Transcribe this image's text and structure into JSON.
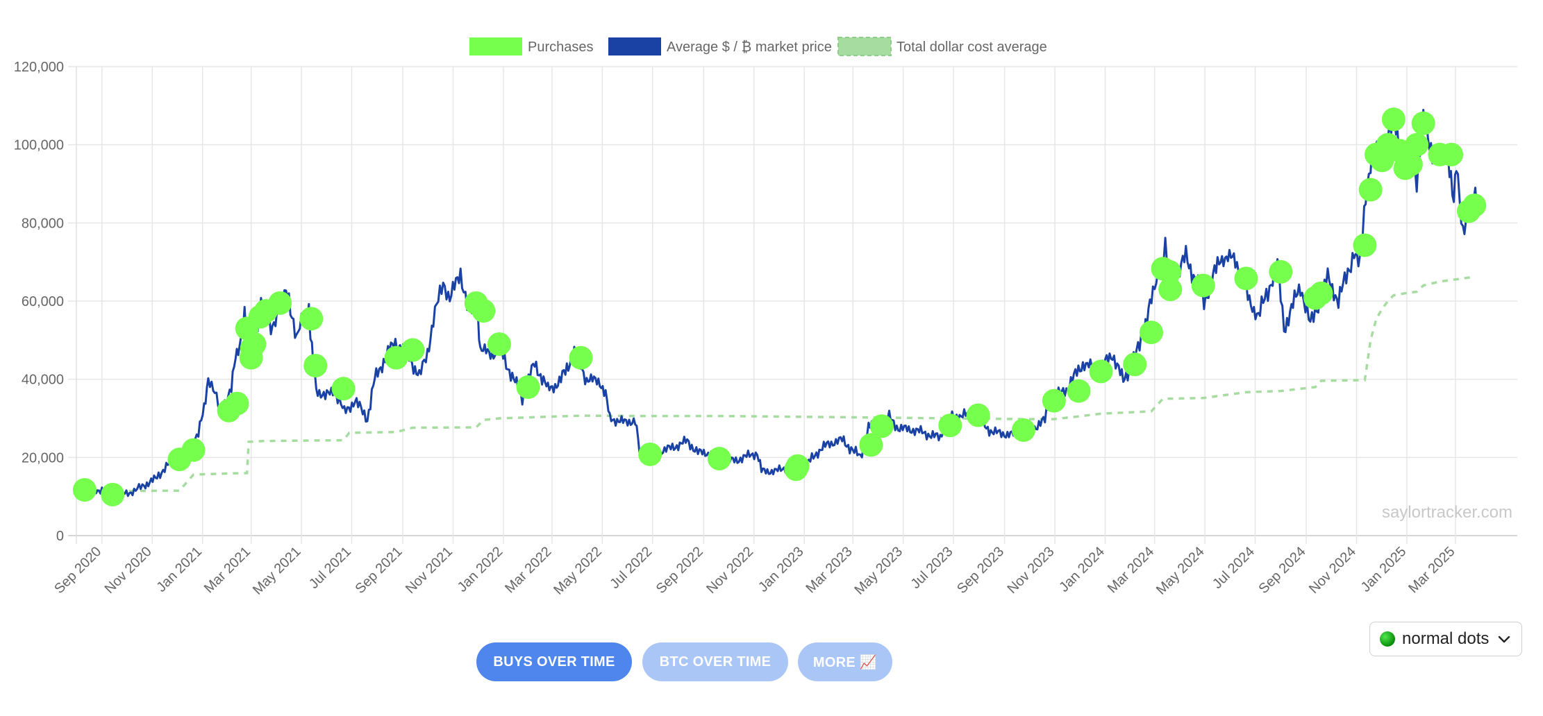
{
  "chart_data": {
    "type": "line",
    "title": "",
    "xlabel": "",
    "ylabel": "",
    "ylim": [
      0,
      120000
    ],
    "yticks": [
      0,
      20000,
      40000,
      60000,
      80000,
      100000,
      120000
    ],
    "ytick_labels": [
      "0",
      "20,000",
      "40,000",
      "60,000",
      "80,000",
      "100,000",
      "120,000"
    ],
    "xlim": [
      "2020-08-01",
      "2025-05-15"
    ],
    "xticks": [
      "2020-09-01",
      "2020-11-01",
      "2021-01-01",
      "2021-03-01",
      "2021-05-01",
      "2021-07-01",
      "2021-09-01",
      "2021-11-01",
      "2022-01-01",
      "2022-03-01",
      "2022-05-01",
      "2022-07-01",
      "2022-09-01",
      "2022-11-01",
      "2023-01-01",
      "2023-03-01",
      "2023-05-01",
      "2023-07-01",
      "2023-09-01",
      "2023-11-01",
      "2024-01-01",
      "2024-03-01",
      "2024-05-01",
      "2024-07-01",
      "2024-09-01",
      "2024-11-01",
      "2025-01-01",
      "2025-03-01"
    ],
    "xtick_labels": [
      "Sep 2020",
      "Nov 2020",
      "Jan 2021",
      "Mar 2021",
      "May 2021",
      "Jul 2021",
      "Sep 2021",
      "Nov 2021",
      "Jan 2022",
      "Mar 2022",
      "May 2022",
      "Jul 2022",
      "Sep 2022",
      "Nov 2022",
      "Jan 2023",
      "Mar 2023",
      "May 2023",
      "Jul 2023",
      "Sep 2023",
      "Nov 2023",
      "Jan 2024",
      "Mar 2024",
      "May 2024",
      "Jul 2024",
      "Sep 2024",
      "Nov 2024",
      "Jan 2025",
      "Mar 2025"
    ],
    "grid": true,
    "legend_position": "top-center",
    "series": [
      {
        "name": "Purchases",
        "kind": "scatter",
        "color": "#76ff4d",
        "points": [
          [
            "2020-08-11",
            11700
          ],
          [
            "2020-09-14",
            10500
          ],
          [
            "2020-12-04",
            19500
          ],
          [
            "2020-12-21",
            21900
          ],
          [
            "2021-02-02",
            32000
          ],
          [
            "2021-02-12",
            33800
          ],
          [
            "2021-02-24",
            53000
          ],
          [
            "2021-03-01",
            45500
          ],
          [
            "2021-03-02",
            48000
          ],
          [
            "2021-03-05",
            49000
          ],
          [
            "2021-03-12",
            56000
          ],
          [
            "2021-03-19",
            57500
          ],
          [
            "2021-04-05",
            59500
          ],
          [
            "2021-05-13",
            55500
          ],
          [
            "2021-05-18",
            43500
          ],
          [
            "2021-06-21",
            37600
          ],
          [
            "2021-08-24",
            45500
          ],
          [
            "2021-09-13",
            47500
          ],
          [
            "2021-11-29",
            59500
          ],
          [
            "2021-12-08",
            57500
          ],
          [
            "2021-12-27",
            49000
          ],
          [
            "2022-01-31",
            38000
          ],
          [
            "2022-04-05",
            45500
          ],
          [
            "2022-06-28",
            20800
          ],
          [
            "2022-09-20",
            19700
          ],
          [
            "2022-12-22",
            17000
          ],
          [
            "2022-12-24",
            17800
          ],
          [
            "2023-03-23",
            23200
          ],
          [
            "2023-04-05",
            28000
          ],
          [
            "2023-06-27",
            28200
          ],
          [
            "2023-07-31",
            30800
          ],
          [
            "2023-09-24",
            27000
          ],
          [
            "2023-10-31",
            34500
          ],
          [
            "2023-11-30",
            37000
          ],
          [
            "2023-12-27",
            42000
          ],
          [
            "2024-02-06",
            43800
          ],
          [
            "2024-02-26",
            52000
          ],
          [
            "2024-03-11",
            68300
          ],
          [
            "2024-03-19",
            67500
          ],
          [
            "2024-03-20",
            63000
          ],
          [
            "2024-04-29",
            64000
          ],
          [
            "2024-06-20",
            65800
          ],
          [
            "2024-08-01",
            67500
          ],
          [
            "2024-09-12",
            60800
          ],
          [
            "2024-09-19",
            62000
          ],
          [
            "2024-11-11",
            74300
          ],
          [
            "2024-11-18",
            88500
          ],
          [
            "2024-11-25",
            97500
          ],
          [
            "2024-12-02",
            96000
          ],
          [
            "2024-12-09",
            100000
          ],
          [
            "2024-12-16",
            106500
          ],
          [
            "2024-12-23",
            98500
          ],
          [
            "2024-12-30",
            94000
          ],
          [
            "2025-01-06",
            95000
          ],
          [
            "2025-01-13",
            100000
          ],
          [
            "2025-01-21",
            105500
          ],
          [
            "2025-02-10",
            97500
          ],
          [
            "2025-02-24",
            97500
          ],
          [
            "2025-03-17",
            83000
          ],
          [
            "2025-03-24",
            84500
          ]
        ]
      },
      {
        "name": "Average $ / ₿ market price",
        "kind": "line",
        "color": "#1a42a5",
        "points": [
          [
            "2020-08-05",
            11500
          ],
          [
            "2020-09-01",
            11700
          ],
          [
            "2020-09-05",
            10300
          ],
          [
            "2020-09-25",
            10700
          ],
          [
            "2020-10-10",
            11300
          ],
          [
            "2020-10-22",
            12900
          ],
          [
            "2020-11-05",
            14500
          ],
          [
            "2020-11-18",
            17800
          ],
          [
            "2020-11-25",
            18700
          ],
          [
            "2020-12-05",
            19200
          ],
          [
            "2020-12-17",
            22800
          ],
          [
            "2020-12-27",
            26500
          ],
          [
            "2021-01-03",
            32000
          ],
          [
            "2021-01-08",
            40500
          ],
          [
            "2021-01-14",
            38000
          ],
          [
            "2021-01-22",
            32000
          ],
          [
            "2021-01-28",
            34000
          ],
          [
            "2021-02-05",
            38000
          ],
          [
            "2021-02-10",
            45000
          ],
          [
            "2021-02-15",
            48500
          ],
          [
            "2021-02-21",
            57500
          ],
          [
            "2021-02-26",
            46500
          ],
          [
            "2021-03-05",
            49000
          ],
          [
            "2021-03-13",
            60000
          ],
          [
            "2021-03-25",
            53000
          ],
          [
            "2021-04-05",
            58500
          ],
          [
            "2021-04-14",
            63500
          ],
          [
            "2021-04-25",
            49500
          ],
          [
            "2021-05-03",
            57000
          ],
          [
            "2021-05-10",
            58000
          ],
          [
            "2021-05-12",
            50000
          ],
          [
            "2021-05-19",
            37500
          ],
          [
            "2021-05-30",
            35500
          ],
          [
            "2021-06-10",
            37500
          ],
          [
            "2021-06-22",
            31500
          ],
          [
            "2021-07-05",
            34500
          ],
          [
            "2021-07-20",
            30000
          ],
          [
            "2021-07-29",
            40000
          ],
          [
            "2021-08-14",
            47000
          ],
          [
            "2021-08-23",
            49500
          ],
          [
            "2021-09-07",
            46500
          ],
          [
            "2021-09-21",
            40500
          ],
          [
            "2021-10-01",
            47000
          ],
          [
            "2021-10-08",
            55000
          ],
          [
            "2021-10-20",
            65000
          ],
          [
            "2021-10-28",
            60500
          ],
          [
            "2021-11-10",
            67500
          ],
          [
            "2021-11-20",
            57000
          ],
          [
            "2021-12-01",
            57500
          ],
          [
            "2021-12-04",
            47500
          ],
          [
            "2021-12-20",
            46500
          ],
          [
            "2021-12-28",
            47500
          ],
          [
            "2022-01-10",
            41500
          ],
          [
            "2022-01-24",
            35500
          ],
          [
            "2022-02-08",
            44000
          ],
          [
            "2022-02-24",
            37500
          ],
          [
            "2022-03-10",
            39000
          ],
          [
            "2022-03-28",
            47000
          ],
          [
            "2022-04-12",
            40000
          ],
          [
            "2022-04-28",
            39500
          ],
          [
            "2022-05-05",
            36000
          ],
          [
            "2022-05-10",
            30000
          ],
          [
            "2022-05-28",
            29000
          ],
          [
            "2022-06-10",
            29500
          ],
          [
            "2022-06-15",
            21500
          ],
          [
            "2022-06-20",
            20300
          ],
          [
            "2022-07-08",
            21500
          ],
          [
            "2022-07-25",
            22500
          ],
          [
            "2022-08-12",
            24200
          ],
          [
            "2022-08-25",
            21300
          ],
          [
            "2022-09-10",
            21000
          ],
          [
            "2022-09-20",
            19000
          ],
          [
            "2022-10-10",
            19300
          ],
          [
            "2022-11-05",
            21200
          ],
          [
            "2022-11-10",
            16500
          ],
          [
            "2022-11-28",
            16500
          ],
          [
            "2022-12-13",
            17700
          ],
          [
            "2022-12-30",
            16500
          ],
          [
            "2023-01-14",
            20800
          ],
          [
            "2023-01-30",
            23500
          ],
          [
            "2023-02-16",
            24500
          ],
          [
            "2023-03-10",
            20000
          ],
          [
            "2023-03-20",
            28000
          ],
          [
            "2023-04-14",
            30300
          ],
          [
            "2023-04-25",
            27500
          ],
          [
            "2023-05-15",
            27000
          ],
          [
            "2023-06-15",
            25000
          ],
          [
            "2023-06-22",
            30000
          ],
          [
            "2023-07-14",
            31000
          ],
          [
            "2023-08-01",
            29500
          ],
          [
            "2023-08-17",
            26500
          ],
          [
            "2023-09-10",
            25800
          ],
          [
            "2023-09-28",
            26500
          ],
          [
            "2023-10-20",
            29500
          ],
          [
            "2023-10-25",
            34500
          ],
          [
            "2023-11-15",
            37500
          ],
          [
            "2023-12-05",
            44000
          ],
          [
            "2023-12-25",
            42500
          ],
          [
            "2024-01-10",
            46500
          ],
          [
            "2024-01-23",
            39500
          ],
          [
            "2024-02-10",
            47500
          ],
          [
            "2024-02-28",
            61500
          ],
          [
            "2024-03-05",
            67000
          ],
          [
            "2024-03-14",
            73500
          ],
          [
            "2024-03-20",
            62500
          ],
          [
            "2024-04-08",
            71500
          ],
          [
            "2024-04-30",
            60000
          ],
          [
            "2024-05-20",
            71000
          ],
          [
            "2024-06-07",
            71000
          ],
          [
            "2024-06-24",
            60000
          ],
          [
            "2024-07-05",
            56000
          ],
          [
            "2024-07-28",
            69500
          ],
          [
            "2024-08-05",
            53000
          ],
          [
            "2024-08-25",
            64000
          ],
          [
            "2024-09-06",
            53800
          ],
          [
            "2024-09-27",
            66000
          ],
          [
            "2024-10-10",
            60000
          ],
          [
            "2024-10-29",
            72500
          ],
          [
            "2024-11-05",
            68500
          ],
          [
            "2024-11-12",
            88000
          ],
          [
            "2024-11-22",
            99000
          ],
          [
            "2024-12-05",
            98500
          ],
          [
            "2024-12-17",
            106500
          ],
          [
            "2024-12-30",
            92500
          ],
          [
            "2025-01-07",
            102000
          ],
          [
            "2025-01-13",
            91000
          ],
          [
            "2025-01-21",
            106000
          ],
          [
            "2025-02-03",
            97000
          ],
          [
            "2025-02-20",
            98000
          ],
          [
            "2025-02-27",
            84500
          ],
          [
            "2025-03-02",
            94500
          ],
          [
            "2025-03-10",
            78500
          ],
          [
            "2025-03-25",
            87500
          ],
          [
            "2025-03-31",
            82500
          ]
        ]
      },
      {
        "name": "Total dollar cost average",
        "kind": "dashed-line",
        "color": "#a6dca0",
        "points": [
          [
            "2020-08-11",
            11700
          ],
          [
            "2020-09-14",
            11400
          ],
          [
            "2020-12-04",
            11500
          ],
          [
            "2020-12-21",
            15600
          ],
          [
            "2021-02-02",
            15900
          ],
          [
            "2021-02-24",
            16000
          ],
          [
            "2021-02-26",
            24000
          ],
          [
            "2021-03-15",
            24200
          ],
          [
            "2021-06-21",
            24400
          ],
          [
            "2021-06-28",
            26300
          ],
          [
            "2021-08-24",
            26500
          ],
          [
            "2021-09-13",
            27600
          ],
          [
            "2021-11-29",
            27700
          ],
          [
            "2021-12-08",
            29600
          ],
          [
            "2021-12-27",
            30000
          ],
          [
            "2022-04-05",
            30700
          ],
          [
            "2022-06-28",
            30600
          ],
          [
            "2022-09-20",
            30600
          ],
          [
            "2022-12-24",
            30400
          ],
          [
            "2023-04-05",
            30200
          ],
          [
            "2023-06-27",
            30000
          ],
          [
            "2023-09-24",
            29800
          ],
          [
            "2023-10-31",
            29800
          ],
          [
            "2023-11-30",
            30500
          ],
          [
            "2023-12-27",
            31200
          ],
          [
            "2024-02-26",
            31800
          ],
          [
            "2024-03-11",
            35000
          ],
          [
            "2024-04-29",
            35200
          ],
          [
            "2024-06-20",
            36700
          ],
          [
            "2024-08-01",
            37000
          ],
          [
            "2024-09-12",
            38000
          ],
          [
            "2024-09-19",
            39600
          ],
          [
            "2024-11-11",
            39800
          ],
          [
            "2024-11-18",
            50000
          ],
          [
            "2024-11-25",
            55500
          ],
          [
            "2024-12-02",
            58000
          ],
          [
            "2024-12-09",
            60000
          ],
          [
            "2024-12-16",
            61500
          ],
          [
            "2024-12-30",
            62000
          ],
          [
            "2025-01-13",
            62400
          ],
          [
            "2025-01-21",
            64000
          ],
          [
            "2025-02-10",
            65000
          ],
          [
            "2025-03-17",
            66000
          ],
          [
            "2025-03-24",
            66500
          ]
        ]
      }
    ],
    "watermark": "saylortracker.com"
  },
  "controls": {
    "buttons": [
      {
        "label": "BUYS OVER TIME",
        "active": true
      },
      {
        "label": "BTC OVER TIME",
        "active": false
      },
      {
        "label": "MORE 📈",
        "active": false
      }
    ],
    "dot_style": {
      "selected": "normal dots",
      "icon": "green-circle-icon"
    }
  },
  "colors": {
    "purchases": "#76ff4d",
    "price": "#1a42a5",
    "dca": "#a6dca0",
    "button_active": "#4f86ed",
    "button_inactive": "#a9c6f7"
  }
}
